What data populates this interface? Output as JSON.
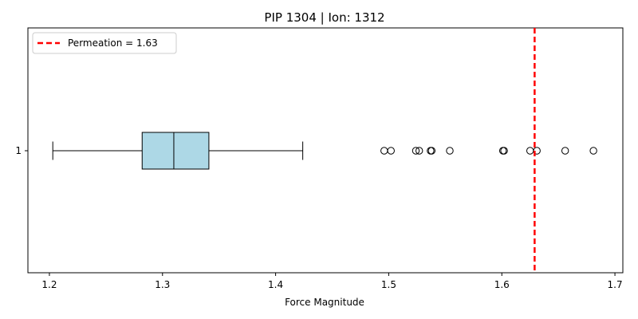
{
  "chart_data": {
    "type": "boxplot",
    "orientation": "horizontal",
    "title": "PIP 1304 | Ion: 1312",
    "xlabel": "Force Magnitude",
    "ylabel": "",
    "xlim": [
      1.181,
      1.707
    ],
    "x_ticks": [
      1.2,
      1.3,
      1.4,
      1.5,
      1.6,
      1.7
    ],
    "x_tick_labels": [
      "1.2",
      "1.3",
      "1.4",
      "1.5",
      "1.6",
      "1.7"
    ],
    "y_tick_labels": [
      "1"
    ],
    "box": {
      "category": "1",
      "whisker_low": 1.203,
      "q1": 1.282,
      "median": 1.31,
      "q3": 1.341,
      "whisker_high": 1.424,
      "fill_color": "#add8e6",
      "outliers": [
        1.496,
        1.502,
        1.524,
        1.527,
        1.537,
        1.538,
        1.554,
        1.601,
        1.602,
        1.625,
        1.631,
        1.656,
        1.681
      ]
    },
    "reference_line": {
      "value": 1.629,
      "label": "Permeation = 1.63",
      "color": "#ff0000",
      "style": "dashed"
    },
    "legend_position": "upper-left",
    "grid": false
  }
}
